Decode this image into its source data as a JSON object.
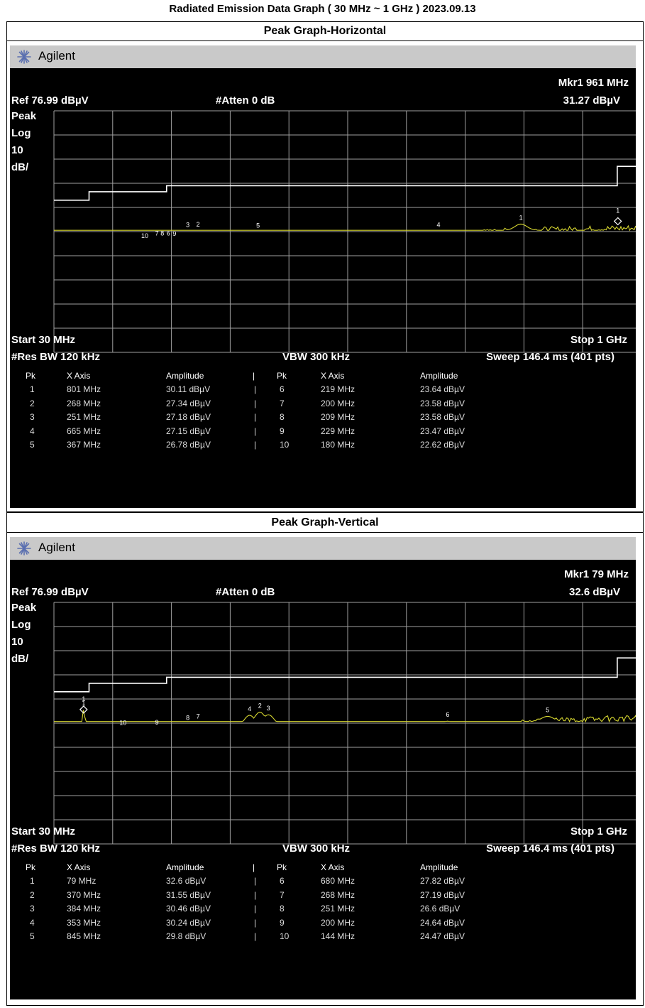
{
  "page_title": "Radiated Emission Data Graph ( 30 MHz ~ 1 GHz ) 2023.09.13",
  "colors": {
    "trace": "#d8d830",
    "grid": "#a0a0a0",
    "limit": "#ffffff",
    "screen": "#000000",
    "header": "#c9c9c9"
  },
  "panels": [
    {
      "id": "horizontal",
      "section_title": "Peak Graph-Horizontal",
      "brand": "Agilent",
      "brand_icon": "agilent-spark-icon",
      "mkr_label": "Mkr1  961 MHz",
      "mkr_value": "31.27 dBµV",
      "ref": "Ref 76.99 dBµV",
      "atten": "#Atten 0 dB",
      "scale": [
        "Peak",
        "Log",
        "10",
        "dB/"
      ],
      "start": "Start 30 MHz",
      "stop": "Stop 1 GHz",
      "res_bw": "#Res BW 120 kHz",
      "vbw": "VBW 300 kHz",
      "sweep": "Sweep 146.4 ms (401 pts)",
      "table_headers": [
        "Pk",
        "X Axis",
        "Amplitude",
        "|",
        "Pk",
        "X Axis",
        "Amplitude"
      ],
      "peaks_left": [
        [
          "1",
          "801 MHz",
          "30.11 dBµV"
        ],
        [
          "2",
          "268 MHz",
          "27.34 dBµV"
        ],
        [
          "3",
          "251 MHz",
          "27.18 dBµV"
        ],
        [
          "4",
          "665 MHz",
          "27.15 dBµV"
        ],
        [
          "5",
          "367 MHz",
          "26.78 dBµV"
        ]
      ],
      "peaks_right": [
        [
          "6",
          "219 MHz",
          "23.64 dBµV"
        ],
        [
          "7",
          "200 MHz",
          "23.58 dBµV"
        ],
        [
          "8",
          "209 MHz",
          "23.58 dBµV"
        ],
        [
          "9",
          "229 MHz",
          "23.47 dBµV"
        ],
        [
          "10",
          "180 MHz",
          "22.62 dBµV"
        ]
      ]
    },
    {
      "id": "vertical",
      "section_title": "Peak Graph-Vertical",
      "brand": "Agilent",
      "brand_icon": "agilent-spark-icon",
      "mkr_label": "Mkr1  79 MHz",
      "mkr_value": "32.6 dBµV",
      "ref": "Ref 76.99 dBµV",
      "atten": "#Atten 0 dB",
      "scale": [
        "Peak",
        "Log",
        "10",
        "dB/"
      ],
      "start": "Start 30 MHz",
      "stop": "Stop 1 GHz",
      "res_bw": "#Res BW 120 kHz",
      "vbw": "VBW 300 kHz",
      "sweep": "Sweep 146.4 ms (401 pts)",
      "table_headers": [
        "Pk",
        "X Axis",
        "Amplitude",
        "|",
        "Pk",
        "X Axis",
        "Amplitude"
      ],
      "peaks_left": [
        [
          "1",
          "79 MHz",
          "32.6 dBµV"
        ],
        [
          "2",
          "370 MHz",
          "31.55 dBµV"
        ],
        [
          "3",
          "384 MHz",
          "30.46 dBµV"
        ],
        [
          "4",
          "353 MHz",
          "30.24 dBµV"
        ],
        [
          "5",
          "845 MHz",
          "29.8 dBµV"
        ]
      ],
      "peaks_right": [
        [
          "6",
          "680 MHz",
          "27.82 dBµV"
        ],
        [
          "7",
          "268 MHz",
          "27.19 dBµV"
        ],
        [
          "8",
          "251 MHz",
          "26.6 dBµV"
        ],
        [
          "9",
          "200 MHz",
          "24.64 dBµV"
        ],
        [
          "10",
          "144 MHz",
          "24.47 dBµV"
        ]
      ]
    }
  ],
  "chart_data": [
    {
      "type": "line",
      "title": "Peak Graph-Horizontal",
      "xlim": [
        30,
        1000
      ],
      "ylim": [
        -23.01,
        76.99
      ],
      "grid": true,
      "x_unit": "MHz",
      "y_unit": "dBµV",
      "limit_line": [
        [
          30,
          40
        ],
        [
          88,
          40
        ],
        [
          88,
          43.5
        ],
        [
          216,
          43.5
        ],
        [
          216,
          46
        ],
        [
          960,
          46
        ],
        [
          960,
          54
        ],
        [
          1000,
          54
        ]
      ],
      "baseline": [
        [
          30,
          21
        ],
        [
          100,
          22
        ],
        [
          200,
          23
        ],
        [
          300,
          24
        ],
        [
          400,
          23
        ],
        [
          500,
          23.5
        ],
        [
          600,
          25
        ],
        [
          700,
          26
        ],
        [
          800,
          27.5
        ],
        [
          900,
          28
        ],
        [
          1000,
          28.5
        ]
      ],
      "peaks": [
        {
          "label": "1",
          "x": 801,
          "y": 30.11
        },
        {
          "label": "2",
          "x": 268,
          "y": 27.34
        },
        {
          "label": "3",
          "x": 251,
          "y": 27.18
        },
        {
          "label": "4",
          "x": 665,
          "y": 27.15
        },
        {
          "label": "5",
          "x": 367,
          "y": 26.78
        },
        {
          "label": "6",
          "x": 219,
          "y": 23.64
        },
        {
          "label": "7",
          "x": 200,
          "y": 23.58
        },
        {
          "label": "8",
          "x": 209,
          "y": 23.58
        },
        {
          "label": "9",
          "x": 229,
          "y": 23.47
        },
        {
          "label": "10",
          "x": 180,
          "y": 22.62
        }
      ],
      "marker": {
        "label": "1",
        "x": 961,
        "y": 31.27
      }
    },
    {
      "type": "line",
      "title": "Peak Graph-Vertical",
      "xlim": [
        30,
        1000
      ],
      "ylim": [
        -23.01,
        76.99
      ],
      "grid": true,
      "x_unit": "MHz",
      "y_unit": "dBµV",
      "limit_line": [
        [
          30,
          40
        ],
        [
          88,
          40
        ],
        [
          88,
          43.5
        ],
        [
          216,
          43.5
        ],
        [
          216,
          46
        ],
        [
          960,
          46
        ],
        [
          960,
          54
        ],
        [
          1000,
          54
        ]
      ],
      "baseline": [
        [
          30,
          21
        ],
        [
          60,
          21.5
        ],
        [
          100,
          20
        ],
        [
          200,
          21
        ],
        [
          300,
          23
        ],
        [
          400,
          26
        ],
        [
          500,
          22
        ],
        [
          600,
          23
        ],
        [
          700,
          25
        ],
        [
          800,
          27
        ],
        [
          900,
          28.5
        ],
        [
          1000,
          29
        ]
      ],
      "peaks": [
        {
          "label": "1",
          "x": 79,
          "y": 32.6
        },
        {
          "label": "2",
          "x": 370,
          "y": 31.55
        },
        {
          "label": "3",
          "x": 384,
          "y": 30.46
        },
        {
          "label": "4",
          "x": 353,
          "y": 30.24
        },
        {
          "label": "5",
          "x": 845,
          "y": 29.8
        },
        {
          "label": "6",
          "x": 680,
          "y": 27.82
        },
        {
          "label": "7",
          "x": 268,
          "y": 27.19
        },
        {
          "label": "8",
          "x": 251,
          "y": 26.6
        },
        {
          "label": "9",
          "x": 200,
          "y": 24.64
        },
        {
          "label": "10",
          "x": 144,
          "y": 24.47
        }
      ],
      "marker": {
        "label": "1",
        "x": 79,
        "y": 32.6
      }
    }
  ]
}
